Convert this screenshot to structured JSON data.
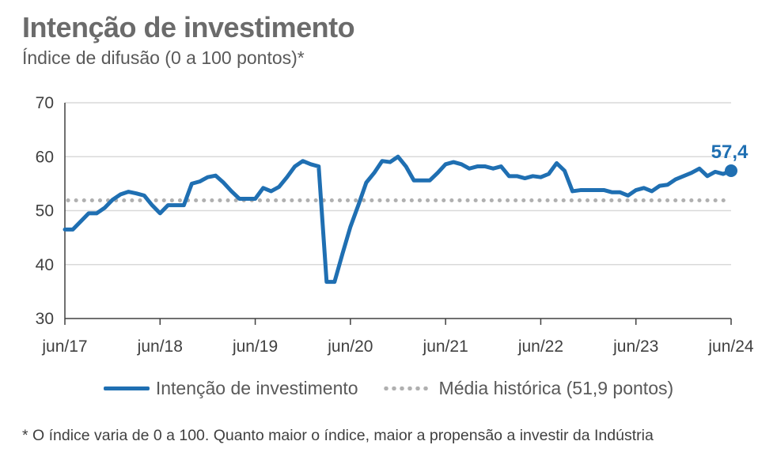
{
  "title": "Intenção de investimento",
  "subtitle": "Índice de difusão (0 a 100 pontos)*",
  "footnote": "* O índice varia de 0 a 100. Quanto maior o índice, maior a propensão a investir da Indústria",
  "colors": {
    "series": "#1f6fb2",
    "average": "#b0b0b0",
    "grid": "#d9d9d9",
    "axis": "#404040"
  },
  "chart_data": {
    "type": "line",
    "x_format": "YYYY-MM",
    "ylim": [
      30,
      70
    ],
    "yticks": [
      30,
      40,
      50,
      60,
      70
    ],
    "ytick_labels": [
      "30",
      "40",
      "50",
      "60",
      "70"
    ],
    "grid": "horizontal",
    "legend_position": "bottom",
    "xticks": [
      "2017-06",
      "2018-06",
      "2019-06",
      "2020-06",
      "2021-06",
      "2022-06",
      "2023-06",
      "2024-06"
    ],
    "xtick_labels": [
      "jun/17",
      "jun/18",
      "jun/19",
      "jun/20",
      "jun/21",
      "jun/22",
      "jun/23",
      "jun/24"
    ],
    "series": [
      {
        "name": "Intenção de investimento",
        "x": [
          "2017-06",
          "2017-07",
          "2017-08",
          "2017-09",
          "2017-10",
          "2017-11",
          "2017-12",
          "2018-01",
          "2018-02",
          "2018-03",
          "2018-04",
          "2018-05",
          "2018-06",
          "2018-07",
          "2018-08",
          "2018-09",
          "2018-10",
          "2018-11",
          "2018-12",
          "2019-01",
          "2019-02",
          "2019-03",
          "2019-04",
          "2019-05",
          "2019-06",
          "2019-07",
          "2019-08",
          "2019-09",
          "2019-10",
          "2019-11",
          "2019-12",
          "2020-01",
          "2020-02",
          "2020-03",
          "2020-04",
          "2020-05",
          "2020-06",
          "2020-07",
          "2020-08",
          "2020-09",
          "2020-10",
          "2020-11",
          "2020-12",
          "2021-01",
          "2021-02",
          "2021-03",
          "2021-04",
          "2021-05",
          "2021-06",
          "2021-07",
          "2021-08",
          "2021-09",
          "2021-10",
          "2021-11",
          "2021-12",
          "2022-01",
          "2022-02",
          "2022-03",
          "2022-04",
          "2022-05",
          "2022-06",
          "2022-07",
          "2022-08",
          "2022-09",
          "2022-10",
          "2022-11",
          "2022-12",
          "2023-01",
          "2023-02",
          "2023-03",
          "2023-04",
          "2023-05",
          "2023-06",
          "2023-07",
          "2023-08",
          "2023-09",
          "2023-10",
          "2023-11",
          "2023-12",
          "2024-01",
          "2024-02",
          "2024-03",
          "2024-04",
          "2024-05",
          "2024-06"
        ],
        "values": [
          46.5,
          46.5,
          48.0,
          49.5,
          49.5,
          50.5,
          52.0,
          53.0,
          53.5,
          53.2,
          52.8,
          51.0,
          49.5,
          51.0,
          51.0,
          51.0,
          55.0,
          55.4,
          56.2,
          56.5,
          55.2,
          53.6,
          52.2,
          52.2,
          52.2,
          54.2,
          53.6,
          54.4,
          56.2,
          58.2,
          59.2,
          58.6,
          58.2,
          36.8,
          36.8,
          42.0,
          47.0,
          51.0,
          55.2,
          57.0,
          59.2,
          59.0,
          60.0,
          58.2,
          55.6,
          55.6,
          55.6,
          57.0,
          58.6,
          59.0,
          58.6,
          57.8,
          58.2,
          58.2,
          57.8,
          58.2,
          56.4,
          56.4,
          56.0,
          56.4,
          56.2,
          56.8,
          58.8,
          57.4,
          53.6,
          53.8,
          53.8,
          53.8,
          53.8,
          53.4,
          53.4,
          52.8,
          53.8,
          54.2,
          53.6,
          54.6,
          54.8,
          55.8,
          56.4,
          57.0,
          57.8,
          56.4,
          57.2,
          56.8,
          57.4
        ]
      },
      {
        "name": "Média histórica (51,9 pontos)",
        "value": 51.9
      }
    ],
    "annotations": [
      {
        "x": "2024-06",
        "text": "57,4"
      }
    ]
  }
}
